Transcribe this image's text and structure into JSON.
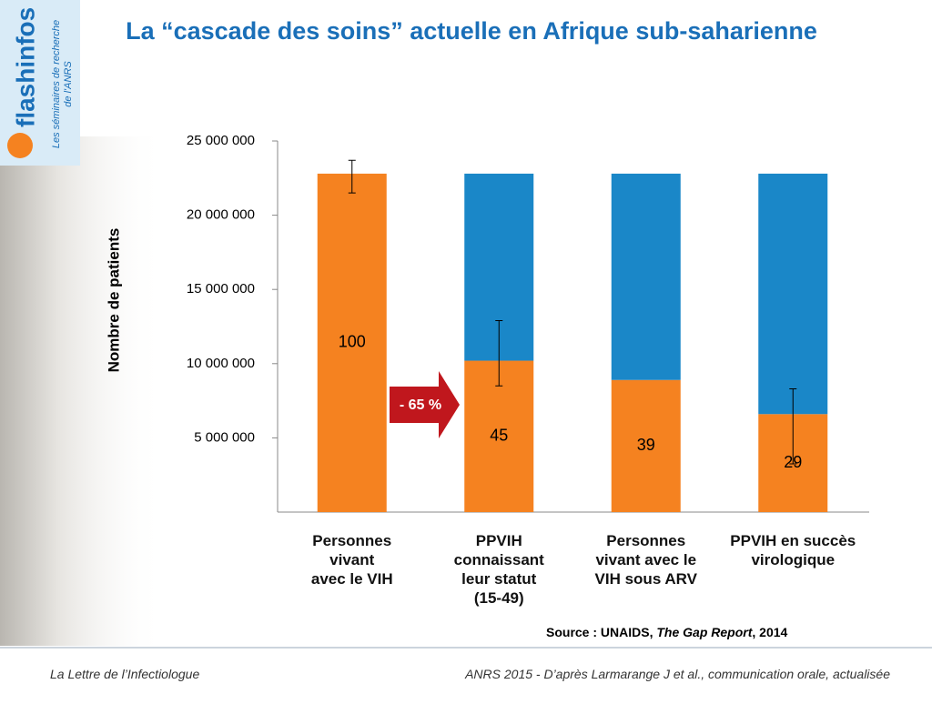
{
  "header": {
    "title": "La “cascade des soins” actuelle en Afrique sub-saharienne",
    "logo": "flashinfos",
    "logo_subtitle": "Les séminaires de recherche\nde l'ANRS"
  },
  "chart_data": {
    "type": "stacked-bar",
    "y_label": "Nombre de patients",
    "categories": [
      "Personnes\nvivant\navec le VIH",
      "PPVIH\nconnaissant\nleur statut\n(15-49)",
      "Personnes\nvivant avec le\nVIH sous ARV",
      "PPVIH en succès\nvirologique"
    ],
    "series": [
      {
        "color": "#f58220",
        "values": [
          22800000,
          10200000,
          8900000,
          6600000
        ]
      },
      {
        "color": "#1a87c8",
        "values": [
          0,
          12600000,
          13900000,
          16200000
        ]
      }
    ],
    "percentages": [
      100,
      45,
      39,
      29
    ],
    "error_ranges": [
      [
        21500000,
        23700000
      ],
      [
        8500000,
        12900000
      ],
      null,
      [
        3250000,
        8300000
      ]
    ],
    "ylim": [
      0,
      25000000
    ],
    "yticks": [
      {
        "value": 5000000,
        "label": "5 000 000"
      },
      {
        "value": 10000000,
        "label": "10 000 000"
      },
      {
        "value": 15000000,
        "label": "15 000 000"
      },
      {
        "value": 20000000,
        "label": "20 000 000"
      },
      {
        "value": 25000000,
        "label": "25 000 000"
      }
    ],
    "arrow_label": "- 65 %",
    "source": {
      "prefix": "Source : UNAIDS,",
      "report": "The Gap Report",
      "suffix": ", 2014"
    }
  },
  "footer": {
    "left": "La Lettre de l’Infectiologue",
    "right": "ANRS 2015 - D’après Larmarange J et al., communication orale, actualisée"
  }
}
